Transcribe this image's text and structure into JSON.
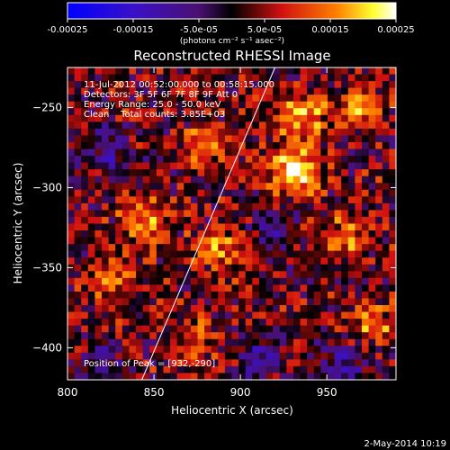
{
  "chart_data": {
    "type": "heatmap",
    "title": "Reconstructed RHESSI Image",
    "xlabel": "Heliocentric X (arcsec)",
    "ylabel": "Heliocentric Y (arcsec)",
    "xlim": [
      800,
      990
    ],
    "ylim": [
      -420,
      -225
    ],
    "x_ticks": [
      800,
      850,
      900,
      950
    ],
    "y_ticks": [
      -250,
      -300,
      -350,
      -400
    ],
    "colorbar": {
      "label": "(photons cm⁻² s⁻¹ asec⁻²)",
      "range": [
        -0.00025,
        0.00025
      ],
      "ticks": [
        "-0.00025",
        "-0.00015",
        "-5.0e-05",
        "5.0e-05",
        "0.00015",
        "0.00025"
      ]
    },
    "annotations": [
      "11-Jul-2012 00:52:00.000 to 00:58:15.000",
      "Detectors: 3F 5F 6F 7F 8F 9F Att 0",
      "Energy Range: 25.0 - 50.0 keV",
      "Clean    Total counts: 3.85E+03"
    ],
    "peak_text": "Position of Peak = [932,-290]",
    "peak_position": [
      932,
      -290
    ],
    "limb_line": [
      [
        843,
        -420
      ],
      [
        920,
        -225
      ]
    ],
    "colormap": "blue-purple-red-yellow-white",
    "hotspots": [
      {
        "x": 932,
        "y": -290,
        "value": 0.00025
      },
      {
        "x": 935,
        "y": -255,
        "value": 0.0002
      },
      {
        "x": 845,
        "y": -320,
        "value": 0.00017
      },
      {
        "x": 970,
        "y": -250,
        "value": 0.00016
      },
      {
        "x": 890,
        "y": -340,
        "value": 0.00015
      },
      {
        "x": 825,
        "y": -360,
        "value": 0.00012
      },
      {
        "x": 960,
        "y": -330,
        "value": 0.00013
      },
      {
        "x": 875,
        "y": -395,
        "value": 0.00012
      },
      {
        "x": 880,
        "y": -275,
        "value": 0.00012
      },
      {
        "x": 975,
        "y": -385,
        "value": 0.00014
      }
    ],
    "coldspots": [
      {
        "x": 825,
        "y": -280,
        "value": -0.00012
      },
      {
        "x": 920,
        "y": -330,
        "value": -0.00012
      },
      {
        "x": 910,
        "y": -405,
        "value": -0.00013
      },
      {
        "x": 960,
        "y": -410,
        "value": -0.00012
      },
      {
        "x": 820,
        "y": -410,
        "value": -0.0001
      }
    ]
  },
  "footer_date": "2-May-2014 10:19"
}
